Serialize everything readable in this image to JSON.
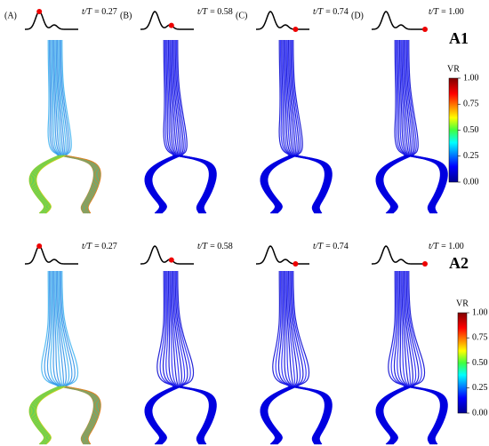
{
  "panels": [
    {
      "label": "A1",
      "frames": [
        {
          "letter": "(A)",
          "variable": "t/T",
          "t": {
            "value": 0.27,
            "label": "= 0.27"
          }
        },
        {
          "letter": "(B)",
          "variable": "t/T",
          "t": {
            "value": 0.58,
            "label": "= 0.58"
          }
        },
        {
          "letter": "(C)",
          "variable": "t/T",
          "t": {
            "value": 0.74,
            "label": "= 0.74"
          }
        },
        {
          "letter": "(D)",
          "variable": "t/T",
          "t": {
            "value": 1,
            "label": "= 1.00"
          }
        }
      ],
      "colorbar": {
        "title": "VR",
        "ticks": [
          {
            "value": 1,
            "label": "1.00"
          },
          {
            "value": 0.75,
            "label": "0.75"
          },
          {
            "value": 0.5,
            "label": "0.50"
          },
          {
            "value": 0.25,
            "label": "0.25"
          },
          {
            "value": 0,
            "label": "0.00"
          }
        ]
      }
    },
    {
      "label": "A2",
      "frames": [
        {
          "variable": "t/T",
          "t": {
            "value": 0.27,
            "label": "= 0.27"
          }
        },
        {
          "variable": "t/T",
          "t": {
            "value": 0.58,
            "label": "= 0.58"
          }
        },
        {
          "variable": "t/T",
          "t": {
            "value": 0.74,
            "label": "= 0.74"
          }
        },
        {
          "variable": "t/T",
          "t": {
            "value": 1,
            "label": "= 1.00"
          }
        }
      ],
      "colorbar": {
        "title": "VR",
        "ticks": [
          {
            "value": 1,
            "label": "1.00"
          },
          {
            "value": 0.75,
            "label": "0.75"
          },
          {
            "value": 0.5,
            "label": "0.50"
          },
          {
            "value": 0.25,
            "label": "0.25"
          },
          {
            "value": 0,
            "label": "0.00"
          }
        ]
      }
    }
  ]
}
